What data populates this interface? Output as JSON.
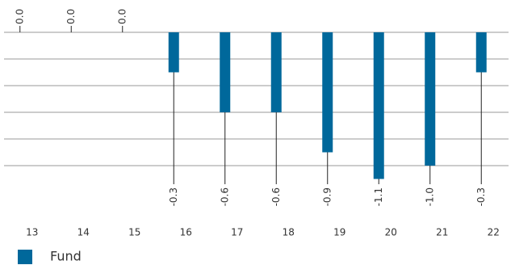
{
  "chart_data": {
    "type": "bar",
    "categories": [
      "13",
      "14",
      "15",
      "16",
      "17",
      "18",
      "19",
      "20",
      "21",
      "22"
    ],
    "series": [
      {
        "name": "Fund",
        "color": "#00689b",
        "values": [
          0,
          0,
          0,
          -0.3,
          -0.6,
          -0.6,
          -0.9,
          -1.1,
          -1.0,
          -0.3
        ],
        "value_labels": [
          "0.0",
          "0.0",
          "0.0",
          "-0.3",
          "-0.6",
          "-0.6",
          "-0.9",
          "-1.1",
          "-1.0",
          "-0.3"
        ]
      }
    ],
    "ylim": [
      -1.1,
      0
    ],
    "yticks": [
      0,
      -0.2,
      -0.4,
      -0.6,
      -0.8,
      -1.0
    ],
    "grid": true,
    "legend": "bottom-left"
  }
}
